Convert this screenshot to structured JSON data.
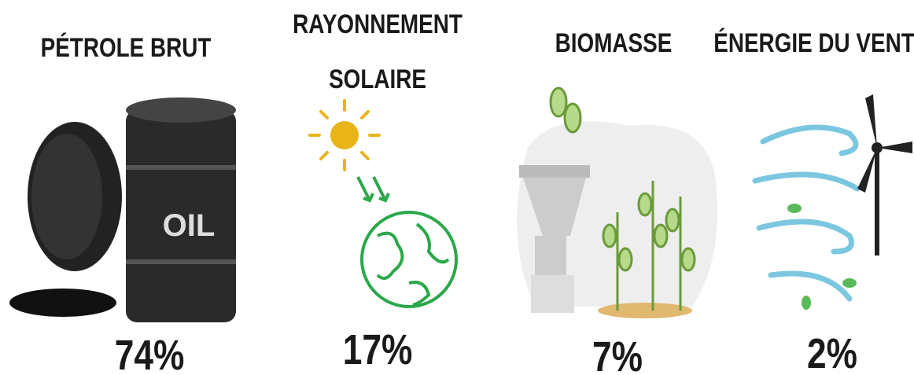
{
  "items": [
    {
      "title": [
        "PÉTROLE BRUT"
      ],
      "value": "74%"
    },
    {
      "title": [
        "RAYONNEMENT",
        "SOLAIRE"
      ],
      "value": "17%"
    },
    {
      "title": [
        "BIOMASSE"
      ],
      "value": "7%"
    },
    {
      "title": [
        "ÉNERGIE DU VENT"
      ],
      "value": "2%"
    }
  ]
}
